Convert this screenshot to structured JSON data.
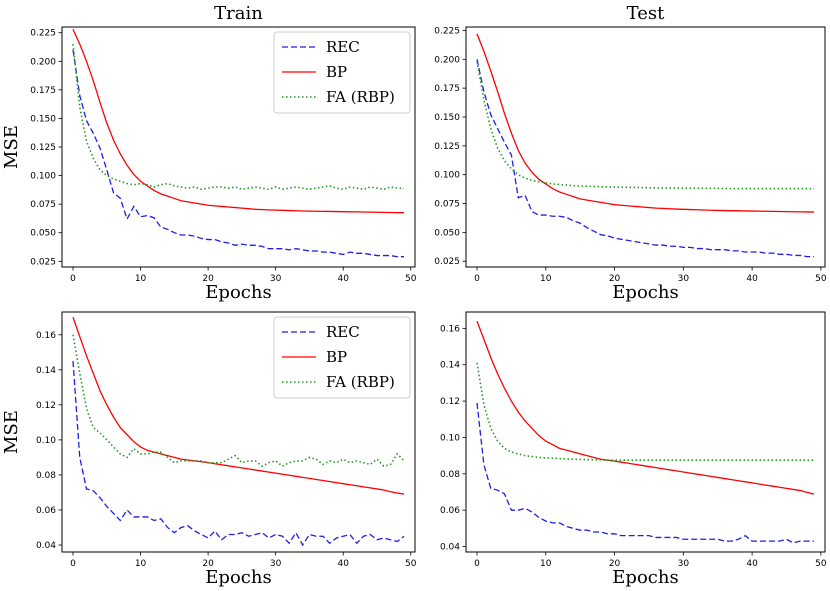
{
  "colors": {
    "REC": "#1f1fe6",
    "BP": "#ff0000",
    "FA": "#229922"
  },
  "chart_data": [
    {
      "type": "line",
      "title": "Train",
      "xlabel": "Epochs",
      "ylabel": "MSE",
      "xlim": [
        0,
        49
      ],
      "ylim": [
        0.02,
        0.23
      ],
      "xticks": [
        0,
        10,
        20,
        30,
        40,
        50
      ],
      "yticks": [
        "0.025",
        "0.050",
        "0.075",
        "0.100",
        "0.125",
        "0.150",
        "0.175",
        "0.200",
        "0.225"
      ],
      "legend_position": "top-right",
      "series": [
        {
          "name": "REC",
          "style": "dashed",
          "color": "#1f1fe6",
          "values": [
            0.21,
            0.17,
            0.148,
            0.137,
            0.124,
            0.105,
            0.085,
            0.08,
            0.062,
            0.073,
            0.064,
            0.065,
            0.063,
            0.055,
            0.053,
            0.05,
            0.048,
            0.048,
            0.047,
            0.045,
            0.044,
            0.044,
            0.042,
            0.041,
            0.039,
            0.04,
            0.039,
            0.039,
            0.038,
            0.036,
            0.036,
            0.036,
            0.035,
            0.036,
            0.035,
            0.034,
            0.034,
            0.033,
            0.033,
            0.032,
            0.031,
            0.033,
            0.032,
            0.032,
            0.031,
            0.03,
            0.03,
            0.03,
            0.029,
            0.029
          ]
        },
        {
          "name": "BP",
          "style": "solid",
          "color": "#ff0000",
          "values": [
            0.228,
            0.215,
            0.2,
            0.183,
            0.164,
            0.146,
            0.131,
            0.119,
            0.109,
            0.101,
            0.095,
            0.091,
            0.087,
            0.084,
            0.082,
            0.08,
            0.078,
            0.077,
            0.076,
            0.075,
            0.074,
            0.0735,
            0.073,
            0.0725,
            0.072,
            0.0715,
            0.071,
            0.0705,
            0.0702,
            0.07,
            0.0698,
            0.0696,
            0.0694,
            0.0692,
            0.069,
            0.0689,
            0.0688,
            0.0687,
            0.0686,
            0.0685,
            0.0684,
            0.0683,
            0.0682,
            0.0681,
            0.068,
            0.0679,
            0.0678,
            0.0677,
            0.0676,
            0.0675
          ]
        },
        {
          "name": "FA (RBP)",
          "style": "dotted",
          "color": "#229922",
          "values": [
            0.215,
            0.16,
            0.13,
            0.115,
            0.105,
            0.1,
            0.097,
            0.095,
            0.093,
            0.092,
            0.093,
            0.092,
            0.09,
            0.092,
            0.093,
            0.091,
            0.09,
            0.089,
            0.09,
            0.088,
            0.089,
            0.09,
            0.09,
            0.089,
            0.09,
            0.088,
            0.089,
            0.09,
            0.089,
            0.088,
            0.09,
            0.088,
            0.089,
            0.09,
            0.089,
            0.088,
            0.089,
            0.09,
            0.091,
            0.089,
            0.088,
            0.09,
            0.089,
            0.088,
            0.09,
            0.089,
            0.088,
            0.09,
            0.089,
            0.089
          ]
        }
      ]
    },
    {
      "type": "line",
      "title": "Test",
      "xlabel": "Epochs",
      "ylabel": "",
      "xlim": [
        0,
        49
      ],
      "ylim": [
        0.02,
        0.228
      ],
      "xticks": [
        0,
        10,
        20,
        30,
        40,
        50
      ],
      "yticks": [
        "0.025",
        "0.050",
        "0.075",
        "0.100",
        "0.125",
        "0.150",
        "0.175",
        "0.200",
        "0.225"
      ],
      "legend_position": "none",
      "series": [
        {
          "name": "REC",
          "style": "dashed",
          "color": "#1f1fe6",
          "values": [
            0.2,
            0.172,
            0.152,
            0.14,
            0.128,
            0.117,
            0.08,
            0.082,
            0.068,
            0.065,
            0.065,
            0.064,
            0.064,
            0.063,
            0.06,
            0.058,
            0.054,
            0.051,
            0.048,
            0.047,
            0.045,
            0.044,
            0.043,
            0.042,
            0.041,
            0.04,
            0.039,
            0.039,
            0.038,
            0.038,
            0.037,
            0.037,
            0.036,
            0.036,
            0.035,
            0.035,
            0.035,
            0.034,
            0.034,
            0.033,
            0.033,
            0.033,
            0.032,
            0.032,
            0.031,
            0.031,
            0.03,
            0.03,
            0.029,
            0.029
          ]
        },
        {
          "name": "BP",
          "style": "solid",
          "color": "#ff0000",
          "values": [
            0.222,
            0.207,
            0.19,
            0.172,
            0.153,
            0.136,
            0.121,
            0.11,
            0.102,
            0.096,
            0.092,
            0.088,
            0.085,
            0.083,
            0.081,
            0.079,
            0.078,
            0.077,
            0.076,
            0.075,
            0.074,
            0.0735,
            0.073,
            0.0725,
            0.072,
            0.0715,
            0.071,
            0.0708,
            0.0705,
            0.0702,
            0.07,
            0.0698,
            0.0696,
            0.0694,
            0.0692,
            0.069,
            0.0689,
            0.0688,
            0.0687,
            0.0686,
            0.0685,
            0.0684,
            0.0683,
            0.0682,
            0.0681,
            0.068,
            0.0679,
            0.0678,
            0.0677,
            0.0676
          ]
        },
        {
          "name": "FA (RBP)",
          "style": "dotted",
          "color": "#229922",
          "values": [
            0.198,
            0.165,
            0.14,
            0.123,
            0.112,
            0.105,
            0.1,
            0.097,
            0.095,
            0.094,
            0.093,
            0.092,
            0.0915,
            0.091,
            0.0905,
            0.0902,
            0.09,
            0.0898,
            0.0896,
            0.0894,
            0.0892,
            0.0891,
            0.089,
            0.0889,
            0.0888,
            0.0887,
            0.0886,
            0.0885,
            0.0885,
            0.0884,
            0.0884,
            0.0883,
            0.0883,
            0.0882,
            0.0882,
            0.0881,
            0.0881,
            0.088,
            0.088,
            0.088,
            0.088,
            0.088,
            0.088,
            0.088,
            0.088,
            0.088,
            0.088,
            0.088,
            0.088,
            0.088
          ]
        }
      ]
    },
    {
      "type": "line",
      "title": "",
      "xlabel": "Epochs",
      "ylabel": "MSE",
      "xlim": [
        0,
        49
      ],
      "ylim": [
        0.036,
        0.173
      ],
      "xticks": [
        0,
        10,
        20,
        30,
        40,
        50
      ],
      "yticks": [
        "0.04",
        "0.06",
        "0.08",
        "0.10",
        "0.12",
        "0.14",
        "0.16"
      ],
      "legend_position": "top-right",
      "series": [
        {
          "name": "REC",
          "style": "dashed",
          "color": "#1f1fe6",
          "values": [
            0.145,
            0.09,
            0.072,
            0.071,
            0.067,
            0.062,
            0.058,
            0.054,
            0.06,
            0.056,
            0.056,
            0.056,
            0.054,
            0.055,
            0.05,
            0.047,
            0.05,
            0.051,
            0.048,
            0.046,
            0.044,
            0.048,
            0.043,
            0.046,
            0.046,
            0.047,
            0.045,
            0.046,
            0.047,
            0.044,
            0.046,
            0.045,
            0.041,
            0.047,
            0.04,
            0.046,
            0.045,
            0.045,
            0.041,
            0.044,
            0.045,
            0.046,
            0.041,
            0.045,
            0.046,
            0.043,
            0.044,
            0.043,
            0.042,
            0.045
          ]
        },
        {
          "name": "BP",
          "style": "solid",
          "color": "#ff0000",
          "values": [
            0.17,
            0.159,
            0.148,
            0.138,
            0.128,
            0.12,
            0.113,
            0.107,
            0.103,
            0.099,
            0.096,
            0.094,
            0.093,
            0.092,
            0.091,
            0.09,
            0.089,
            0.0885,
            0.088,
            0.0875,
            0.087,
            0.0864,
            0.0858,
            0.0852,
            0.0846,
            0.084,
            0.0834,
            0.0828,
            0.0822,
            0.0816,
            0.081,
            0.0804,
            0.0798,
            0.0792,
            0.0786,
            0.078,
            0.0774,
            0.0768,
            0.0762,
            0.0756,
            0.075,
            0.0744,
            0.0738,
            0.0732,
            0.0726,
            0.072,
            0.0714,
            0.0704,
            0.0697,
            0.069
          ]
        },
        {
          "name": "FA (RBP)",
          "style": "dotted",
          "color": "#229922",
          "values": [
            0.16,
            0.138,
            0.118,
            0.107,
            0.104,
            0.1,
            0.096,
            0.092,
            0.09,
            0.095,
            0.092,
            0.092,
            0.093,
            0.093,
            0.09,
            0.087,
            0.088,
            0.088,
            0.088,
            0.088,
            0.087,
            0.087,
            0.087,
            0.089,
            0.091,
            0.087,
            0.088,
            0.088,
            0.085,
            0.087,
            0.088,
            0.085,
            0.087,
            0.088,
            0.088,
            0.09,
            0.089,
            0.086,
            0.088,
            0.087,
            0.089,
            0.087,
            0.088,
            0.087,
            0.086,
            0.089,
            0.085,
            0.086,
            0.092,
            0.088
          ]
        }
      ]
    },
    {
      "type": "line",
      "title": "",
      "xlabel": "Epochs",
      "ylabel": "",
      "xlim": [
        0,
        49
      ],
      "ylim": [
        0.037,
        0.169
      ],
      "xticks": [
        0,
        10,
        20,
        30,
        40,
        50
      ],
      "yticks": [
        "0.04",
        "0.06",
        "0.08",
        "0.10",
        "0.12",
        "0.14",
        "0.16"
      ],
      "legend_position": "none",
      "series": [
        {
          "name": "REC",
          "style": "dashed",
          "color": "#1f1fe6",
          "values": [
            0.119,
            0.085,
            0.072,
            0.071,
            0.069,
            0.06,
            0.06,
            0.061,
            0.059,
            0.056,
            0.054,
            0.053,
            0.053,
            0.051,
            0.05,
            0.049,
            0.049,
            0.048,
            0.048,
            0.047,
            0.047,
            0.046,
            0.046,
            0.046,
            0.046,
            0.046,
            0.045,
            0.045,
            0.045,
            0.045,
            0.044,
            0.044,
            0.044,
            0.044,
            0.044,
            0.044,
            0.043,
            0.043,
            0.044,
            0.046,
            0.043,
            0.043,
            0.043,
            0.043,
            0.043,
            0.044,
            0.042,
            0.043,
            0.043,
            0.043
          ]
        },
        {
          "name": "BP",
          "style": "solid",
          "color": "#ff0000",
          "values": [
            0.164,
            0.154,
            0.144,
            0.135,
            0.127,
            0.12,
            0.114,
            0.109,
            0.105,
            0.101,
            0.098,
            0.096,
            0.094,
            0.093,
            0.092,
            0.091,
            0.09,
            0.089,
            0.088,
            0.0875,
            0.087,
            0.0864,
            0.0858,
            0.0852,
            0.0846,
            0.084,
            0.0834,
            0.0828,
            0.0822,
            0.0816,
            0.081,
            0.0804,
            0.0798,
            0.0792,
            0.0786,
            0.078,
            0.0774,
            0.0768,
            0.0762,
            0.0756,
            0.075,
            0.0744,
            0.0738,
            0.0732,
            0.0726,
            0.072,
            0.0714,
            0.0708,
            0.0698,
            0.0688
          ]
        },
        {
          "name": "FA (RBP)",
          "style": "dotted",
          "color": "#229922",
          "values": [
            0.141,
            0.118,
            0.105,
            0.098,
            0.094,
            0.092,
            0.091,
            0.09,
            0.0895,
            0.089,
            0.0888,
            0.0886,
            0.0884,
            0.0882,
            0.088,
            0.0879,
            0.0878,
            0.0877,
            0.0876,
            0.0875,
            0.0875,
            0.0875,
            0.0875,
            0.0875,
            0.0875,
            0.0875,
            0.0875,
            0.0875,
            0.0875,
            0.0875,
            0.0875,
            0.0875,
            0.0875,
            0.0875,
            0.0875,
            0.0875,
            0.0875,
            0.0875,
            0.0875,
            0.0875,
            0.0875,
            0.0875,
            0.0875,
            0.0875,
            0.0875,
            0.0875,
            0.0875,
            0.0875,
            0.0875,
            0.0875
          ]
        }
      ]
    }
  ]
}
